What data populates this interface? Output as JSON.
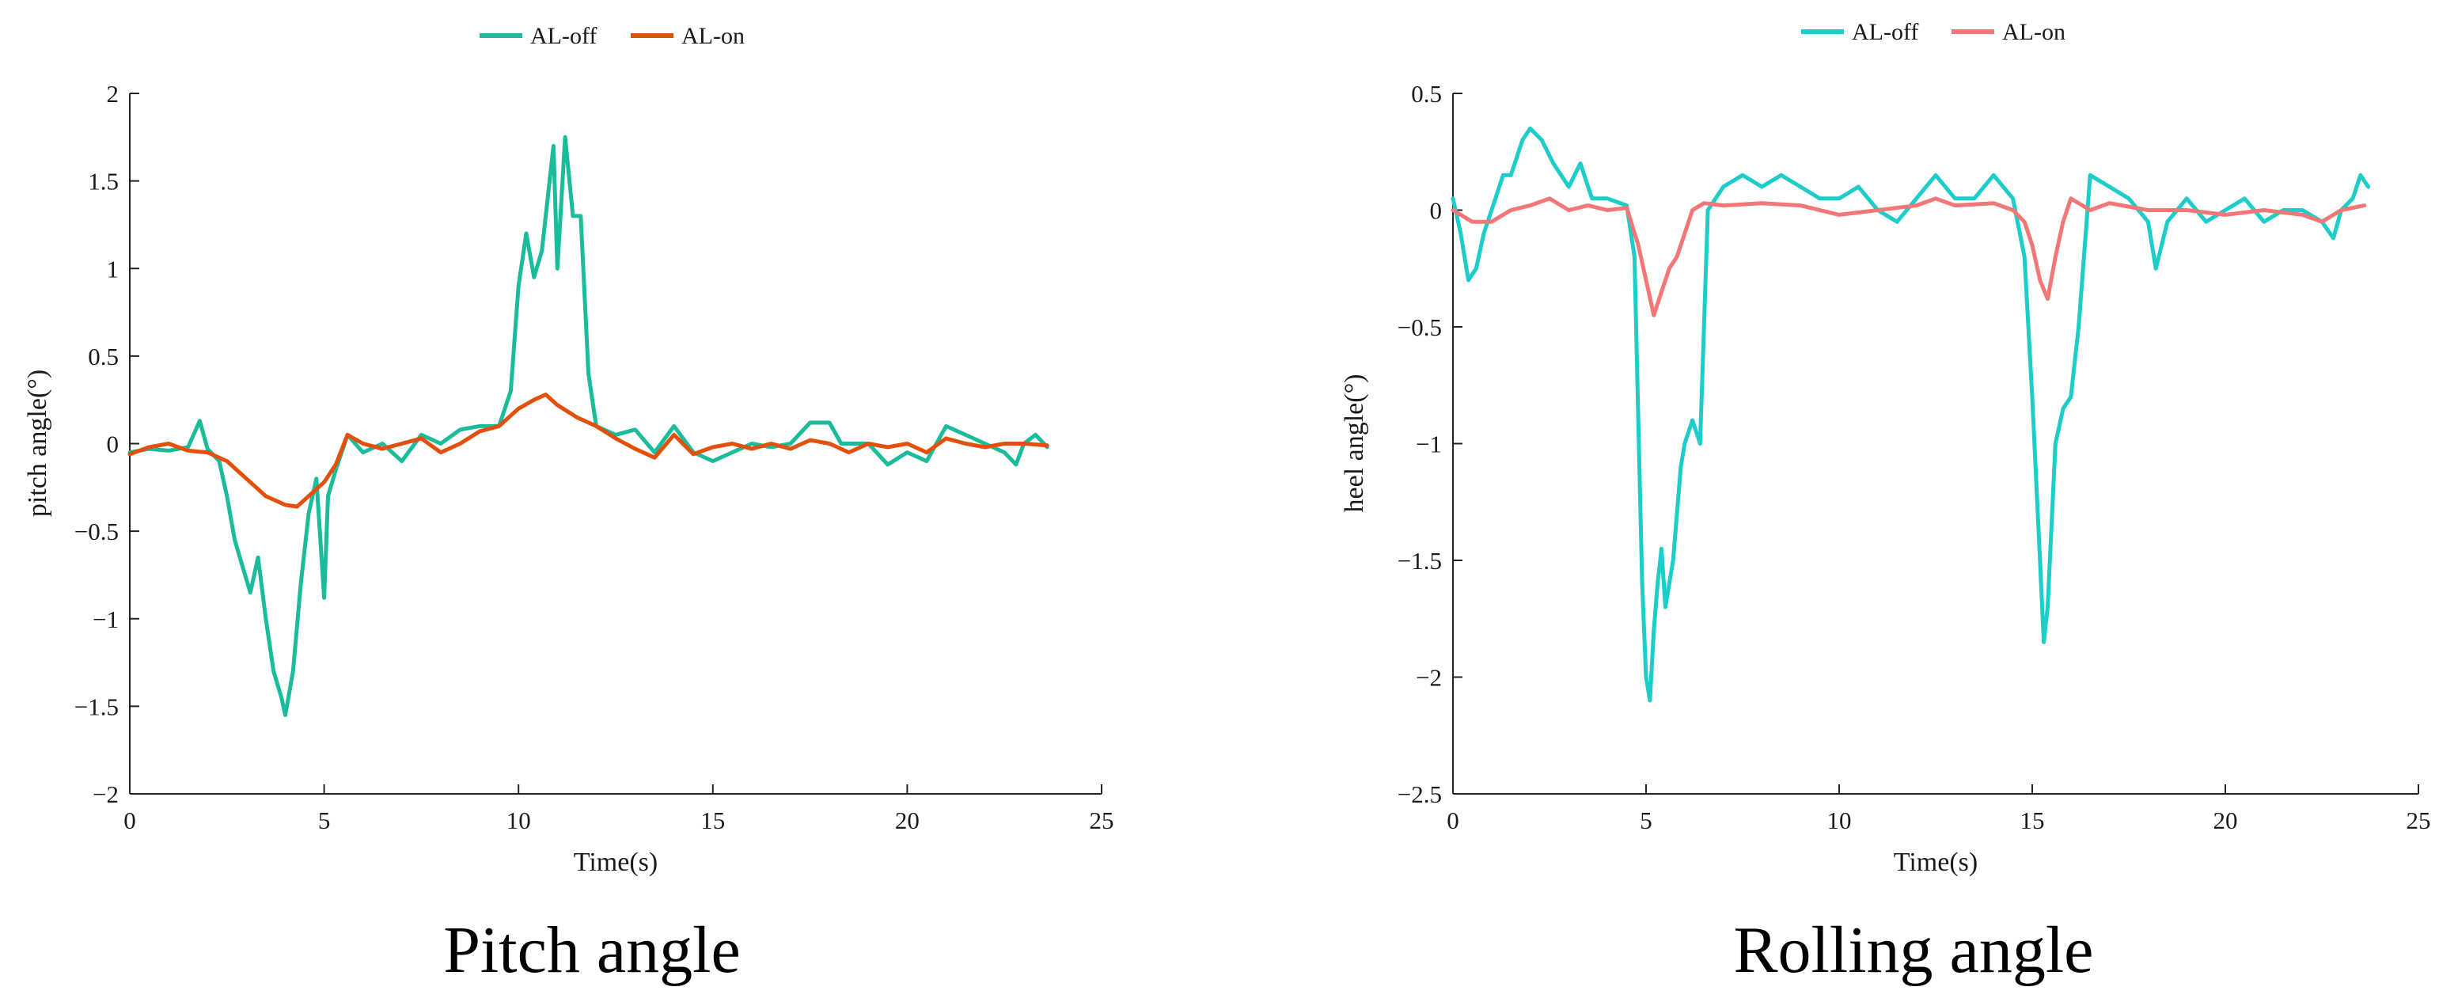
{
  "chart_data": [
    {
      "type": "line",
      "caption": "Pitch angle",
      "xlabel": "Time(s)",
      "ylabel": "pitch angle(°)",
      "xlim": [
        0,
        25
      ],
      "ylim": [
        -2,
        2
      ],
      "xticks": [
        0,
        5,
        10,
        15,
        20,
        25
      ],
      "yticks": [
        2,
        1.5,
        1,
        0.5,
        0,
        -0.5,
        -1,
        -1.5,
        -2
      ],
      "ytick_labels": [
        "2",
        "1.5",
        "1",
        "0.5",
        "0",
        "−0.5",
        "−1",
        "−1.5",
        "−2"
      ],
      "legend_position": "top-center",
      "grid": false,
      "series": [
        {
          "name": "AL-off",
          "color": "#1abc9c",
          "points": [
            [
              0,
              -0.05
            ],
            [
              0.5,
              -0.03
            ],
            [
              1.0,
              -0.04
            ],
            [
              1.5,
              -0.02
            ],
            [
              1.8,
              0.13
            ],
            [
              2.0,
              -0.03
            ],
            [
              2.3,
              -0.1
            ],
            [
              2.5,
              -0.3
            ],
            [
              2.7,
              -0.55
            ],
            [
              2.9,
              -0.7
            ],
            [
              3.1,
              -0.85
            ],
            [
              3.3,
              -0.65
            ],
            [
              3.5,
              -1.0
            ],
            [
              3.7,
              -1.3
            ],
            [
              3.9,
              -1.45
            ],
            [
              4.0,
              -1.55
            ],
            [
              4.2,
              -1.3
            ],
            [
              4.4,
              -0.8
            ],
            [
              4.6,
              -0.4
            ],
            [
              4.8,
              -0.2
            ],
            [
              5.0,
              -0.88
            ],
            [
              5.1,
              -0.3
            ],
            [
              5.3,
              -0.15
            ],
            [
              5.6,
              0.05
            ],
            [
              6.0,
              -0.05
            ],
            [
              6.5,
              0.0
            ],
            [
              7.0,
              -0.1
            ],
            [
              7.5,
              0.05
            ],
            [
              8.0,
              0.0
            ],
            [
              8.5,
              0.08
            ],
            [
              9.0,
              0.1
            ],
            [
              9.5,
              0.1
            ],
            [
              9.8,
              0.3
            ],
            [
              10.0,
              0.9
            ],
            [
              10.2,
              1.2
            ],
            [
              10.4,
              0.95
            ],
            [
              10.6,
              1.1
            ],
            [
              10.8,
              1.5
            ],
            [
              10.9,
              1.7
            ],
            [
              11.0,
              1.0
            ],
            [
              11.2,
              1.75
            ],
            [
              11.4,
              1.3
            ],
            [
              11.6,
              1.3
            ],
            [
              11.8,
              0.4
            ],
            [
              12.0,
              0.1
            ],
            [
              12.5,
              0.05
            ],
            [
              13.0,
              0.08
            ],
            [
              13.5,
              -0.05
            ],
            [
              14.0,
              0.1
            ],
            [
              14.5,
              -0.05
            ],
            [
              15.0,
              -0.1
            ],
            [
              15.5,
              -0.05
            ],
            [
              16.0,
              0.0
            ],
            [
              16.5,
              -0.02
            ],
            [
              17.0,
              0.0
            ],
            [
              17.5,
              0.12
            ],
            [
              18.0,
              0.12
            ],
            [
              18.3,
              0.0
            ],
            [
              19.0,
              0.0
            ],
            [
              19.5,
              -0.12
            ],
            [
              20.0,
              -0.05
            ],
            [
              20.5,
              -0.1
            ],
            [
              21.0,
              0.1
            ],
            [
              21.5,
              0.05
            ],
            [
              22.0,
              0.0
            ],
            [
              22.5,
              -0.05
            ],
            [
              22.8,
              -0.12
            ],
            [
              23.0,
              0.0
            ],
            [
              23.3,
              0.05
            ],
            [
              23.6,
              -0.02
            ]
          ]
        },
        {
          "name": "AL-on",
          "color": "#e2500c",
          "points": [
            [
              0,
              -0.06
            ],
            [
              0.5,
              -0.02
            ],
            [
              1.0,
              0.0
            ],
            [
              1.5,
              -0.04
            ],
            [
              2.0,
              -0.05
            ],
            [
              2.5,
              -0.1
            ],
            [
              3.0,
              -0.2
            ],
            [
              3.5,
              -0.3
            ],
            [
              4.0,
              -0.35
            ],
            [
              4.3,
              -0.36
            ],
            [
              4.6,
              -0.3
            ],
            [
              5.0,
              -0.22
            ],
            [
              5.3,
              -0.12
            ],
            [
              5.6,
              0.05
            ],
            [
              6.0,
              0.0
            ],
            [
              6.5,
              -0.03
            ],
            [
              7.0,
              0.0
            ],
            [
              7.5,
              0.03
            ],
            [
              8.0,
              -0.05
            ],
            [
              8.5,
              0.0
            ],
            [
              9.0,
              0.07
            ],
            [
              9.5,
              0.1
            ],
            [
              10.0,
              0.2
            ],
            [
              10.4,
              0.25
            ],
            [
              10.7,
              0.28
            ],
            [
              11.0,
              0.22
            ],
            [
              11.5,
              0.15
            ],
            [
              12.0,
              0.1
            ],
            [
              12.5,
              0.03
            ],
            [
              13.0,
              -0.03
            ],
            [
              13.5,
              -0.08
            ],
            [
              14.0,
              0.05
            ],
            [
              14.5,
              -0.06
            ],
            [
              15.0,
              -0.02
            ],
            [
              15.5,
              0.0
            ],
            [
              16.0,
              -0.03
            ],
            [
              16.5,
              0.0
            ],
            [
              17.0,
              -0.03
            ],
            [
              17.5,
              0.02
            ],
            [
              18.0,
              0.0
            ],
            [
              18.5,
              -0.05
            ],
            [
              19.0,
              0.0
            ],
            [
              19.5,
              -0.02
            ],
            [
              20.0,
              0.0
            ],
            [
              20.5,
              -0.05
            ],
            [
              21.0,
              0.03
            ],
            [
              21.5,
              0.0
            ],
            [
              22.0,
              -0.02
            ],
            [
              22.5,
              0.0
            ],
            [
              23.0,
              0.0
            ],
            [
              23.6,
              -0.01
            ]
          ]
        }
      ]
    },
    {
      "type": "line",
      "caption": "Rolling angle",
      "xlabel": "Time(s)",
      "ylabel": "heel angle(°)",
      "xlim": [
        0,
        25
      ],
      "ylim": [
        -2.5,
        0.5
      ],
      "xticks": [
        0,
        5,
        10,
        15,
        20,
        25
      ],
      "yticks": [
        0.5,
        0,
        -0.5,
        -1,
        -1.5,
        -2,
        -2.5
      ],
      "ytick_labels": [
        "0.5",
        "0",
        "−0.5",
        "−1",
        "−1.5",
        "−2",
        "−2.5"
      ],
      "legend_position": "top-center",
      "grid": false,
      "series": [
        {
          "name": "AL-off",
          "color": "#1ccdc9",
          "points": [
            [
              0,
              0.05
            ],
            [
              0.2,
              -0.1
            ],
            [
              0.4,
              -0.3
            ],
            [
              0.6,
              -0.25
            ],
            [
              0.8,
              -0.1
            ],
            [
              1.0,
              0.0
            ],
            [
              1.3,
              0.15
            ],
            [
              1.5,
              0.15
            ],
            [
              1.8,
              0.3
            ],
            [
              2.0,
              0.35
            ],
            [
              2.3,
              0.3
            ],
            [
              2.6,
              0.2
            ],
            [
              3.0,
              0.1
            ],
            [
              3.3,
              0.2
            ],
            [
              3.6,
              0.05
            ],
            [
              4.0,
              0.05
            ],
            [
              4.5,
              0.02
            ],
            [
              4.7,
              -0.2
            ],
            [
              4.8,
              -0.9
            ],
            [
              4.9,
              -1.6
            ],
            [
              5.0,
              -2.0
            ],
            [
              5.1,
              -2.1
            ],
            [
              5.2,
              -1.8
            ],
            [
              5.3,
              -1.6
            ],
            [
              5.4,
              -1.45
            ],
            [
              5.5,
              -1.7
            ],
            [
              5.7,
              -1.5
            ],
            [
              5.9,
              -1.1
            ],
            [
              6.0,
              -1.0
            ],
            [
              6.2,
              -0.9
            ],
            [
              6.4,
              -1.0
            ],
            [
              6.6,
              0.0
            ],
            [
              7.0,
              0.1
            ],
            [
              7.5,
              0.15
            ],
            [
              8.0,
              0.1
            ],
            [
              8.5,
              0.15
            ],
            [
              9.0,
              0.1
            ],
            [
              9.5,
              0.05
            ],
            [
              10.0,
              0.05
            ],
            [
              10.5,
              0.1
            ],
            [
              11.0,
              0.0
            ],
            [
              11.5,
              -0.05
            ],
            [
              12.0,
              0.05
            ],
            [
              12.5,
              0.15
            ],
            [
              13.0,
              0.05
            ],
            [
              13.5,
              0.05
            ],
            [
              14.0,
              0.15
            ],
            [
              14.5,
              0.05
            ],
            [
              14.8,
              -0.2
            ],
            [
              15.0,
              -0.8
            ],
            [
              15.2,
              -1.5
            ],
            [
              15.3,
              -1.85
            ],
            [
              15.4,
              -1.7
            ],
            [
              15.6,
              -1.0
            ],
            [
              15.8,
              -0.85
            ],
            [
              16.0,
              -0.8
            ],
            [
              16.2,
              -0.5
            ],
            [
              16.5,
              0.15
            ],
            [
              17.0,
              0.1
            ],
            [
              17.5,
              0.05
            ],
            [
              18.0,
              -0.05
            ],
            [
              18.2,
              -0.25
            ],
            [
              18.5,
              -0.05
            ],
            [
              19.0,
              0.05
            ],
            [
              19.5,
              -0.05
            ],
            [
              20.0,
              0.0
            ],
            [
              20.5,
              0.05
            ],
            [
              21.0,
              -0.05
            ],
            [
              21.5,
              0.0
            ],
            [
              22.0,
              0.0
            ],
            [
              22.5,
              -0.05
            ],
            [
              22.8,
              -0.12
            ],
            [
              23.0,
              0.0
            ],
            [
              23.3,
              0.05
            ],
            [
              23.5,
              0.15
            ],
            [
              23.7,
              0.1
            ]
          ]
        },
        {
          "name": "AL-on",
          "color": "#f47778",
          "points": [
            [
              0,
              0.0
            ],
            [
              0.5,
              -0.05
            ],
            [
              1.0,
              -0.05
            ],
            [
              1.5,
              0.0
            ],
            [
              2.0,
              0.02
            ],
            [
              2.5,
              0.05
            ],
            [
              3.0,
              0.0
            ],
            [
              3.5,
              0.02
            ],
            [
              4.0,
              0.0
            ],
            [
              4.5,
              0.01
            ],
            [
              4.8,
              -0.15
            ],
            [
              5.0,
              -0.3
            ],
            [
              5.2,
              -0.45
            ],
            [
              5.4,
              -0.35
            ],
            [
              5.6,
              -0.25
            ],
            [
              5.8,
              -0.2
            ],
            [
              6.0,
              -0.1
            ],
            [
              6.2,
              0.0
            ],
            [
              6.5,
              0.03
            ],
            [
              7.0,
              0.02
            ],
            [
              8.0,
              0.03
            ],
            [
              9.0,
              0.02
            ],
            [
              10.0,
              -0.02
            ],
            [
              11.0,
              0.0
            ],
            [
              12.0,
              0.02
            ],
            [
              12.5,
              0.05
            ],
            [
              13.0,
              0.02
            ],
            [
              14.0,
              0.03
            ],
            [
              14.5,
              0.0
            ],
            [
              14.8,
              -0.05
            ],
            [
              15.0,
              -0.15
            ],
            [
              15.2,
              -0.3
            ],
            [
              15.4,
              -0.38
            ],
            [
              15.6,
              -0.2
            ],
            [
              15.8,
              -0.05
            ],
            [
              16.0,
              0.05
            ],
            [
              16.5,
              0.0
            ],
            [
              17.0,
              0.03
            ],
            [
              18.0,
              0.0
            ],
            [
              19.0,
              0.0
            ],
            [
              20.0,
              -0.02
            ],
            [
              21.0,
              0.0
            ],
            [
              22.0,
              -0.02
            ],
            [
              22.5,
              -0.05
            ],
            [
              23.0,
              0.0
            ],
            [
              23.6,
              0.02
            ]
          ]
        }
      ]
    }
  ]
}
